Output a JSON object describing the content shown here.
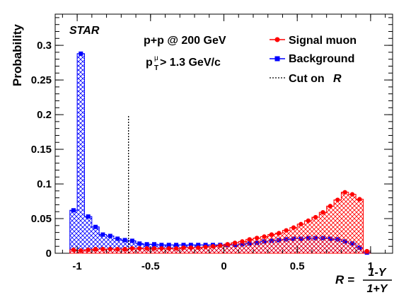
{
  "chart_data": {
    "type": "histogram",
    "experiment_label": "STAR",
    "annotations": {
      "line1": "p+p @ 200 GeV",
      "pt_main": "p",
      "pt_sup": "μ",
      "pt_sub": "T",
      "pt_rest": " > 1.3 GeV/c"
    },
    "ylabel": "Probability",
    "xlabel": {
      "prefix": "R = ",
      "numerator": "1-Y",
      "denominator": "1+Y"
    },
    "xlim": [
      -1.15,
      1.15
    ],
    "ylim": [
      0,
      0.345
    ],
    "x_ticks": [
      -1,
      -0.5,
      0,
      0.5,
      1
    ],
    "x_tick_labels": [
      "-1",
      "-0.5",
      "0",
      "0.5",
      "1"
    ],
    "y_ticks": [
      0,
      0.05,
      0.1,
      0.15,
      0.2,
      0.25,
      0.3
    ],
    "y_tick_labels": [
      "0",
      "0.05",
      "0.1",
      "0.15",
      "0.2",
      "0.25",
      "0.3"
    ],
    "bin_width": 0.05,
    "bin_centers": [
      -1.025,
      -0.975,
      -0.925,
      -0.875,
      -0.825,
      -0.775,
      -0.725,
      -0.675,
      -0.625,
      -0.575,
      -0.525,
      -0.475,
      -0.425,
      -0.375,
      -0.325,
      -0.275,
      -0.225,
      -0.175,
      -0.125,
      -0.075,
      -0.025,
      0.025,
      0.075,
      0.125,
      0.175,
      0.225,
      0.275,
      0.325,
      0.375,
      0.425,
      0.475,
      0.525,
      0.575,
      0.625,
      0.675,
      0.725,
      0.775,
      0.825,
      0.875,
      0.925,
      0.975
    ],
    "series": [
      {
        "name": "Signal muon",
        "color": "#ff0000",
        "marker": "circle",
        "values": [
          0.005,
          0.004,
          0.005,
          0.006,
          0.006,
          0.006,
          0.006,
          0.006,
          0.007,
          0.007,
          0.007,
          0.007,
          0.007,
          0.007,
          0.007,
          0.008,
          0.008,
          0.008,
          0.009,
          0.01,
          0.011,
          0.013,
          0.015,
          0.017,
          0.02,
          0.022,
          0.024,
          0.027,
          0.029,
          0.033,
          0.037,
          0.042,
          0.047,
          0.052,
          0.059,
          0.068,
          0.077,
          0.088,
          0.085,
          0.078,
          0.003
        ]
      },
      {
        "name": "Background",
        "color": "#0000ff",
        "marker": "square",
        "values": [
          0.062,
          0.288,
          0.053,
          0.038,
          0.027,
          0.025,
          0.021,
          0.019,
          0.018,
          0.014,
          0.013,
          0.013,
          0.012,
          0.012,
          0.012,
          0.012,
          0.012,
          0.012,
          0.012,
          0.012,
          0.012,
          0.012,
          0.012,
          0.013,
          0.014,
          0.015,
          0.017,
          0.018,
          0.019,
          0.02,
          0.021,
          0.021,
          0.022,
          0.022,
          0.022,
          0.021,
          0.02,
          0.017,
          0.014,
          0.008,
          0.001
        ]
      }
    ],
    "cut_line": {
      "name": "Cut on R",
      "label_text": "Cut on ",
      "label_var": "R",
      "x": -0.65,
      "y_top": 0.2
    },
    "legend": {
      "placement": "top-right"
    }
  }
}
